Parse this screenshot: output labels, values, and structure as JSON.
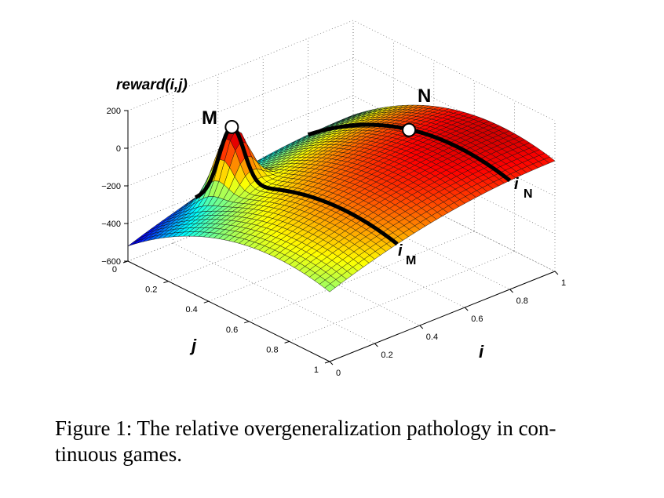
{
  "chart_data": {
    "type": "surface",
    "title": "",
    "zlabel": "reward(i,j)",
    "xlabel": "i",
    "ylabel": "j",
    "xlim": [
      0,
      1
    ],
    "ylim": [
      0,
      1
    ],
    "zlim": [
      -600,
      200
    ],
    "x_ticks": [
      "0",
      "0.2",
      "0.4",
      "0.6",
      "0.8",
      "1"
    ],
    "y_ticks": [
      "0",
      "0.2",
      "0.4",
      "0.6",
      "0.8",
      "1"
    ],
    "z_ticks": [
      "200",
      "0",
      "−200",
      "−400",
      "−600"
    ],
    "z_tick_values": [
      200,
      0,
      -200,
      -400,
      -600
    ],
    "x_tick_values": [
      0,
      0.2,
      0.4,
      0.6,
      0.8,
      1
    ],
    "y_tick_values": [
      0,
      0.2,
      0.4,
      0.6,
      0.8,
      1
    ],
    "surface_corners": {
      "i0_j0": -520,
      "i0_j1": -230,
      "i1_j0": -303,
      "i1_j1": -13
    },
    "narrow_peak": {
      "label": "M",
      "i": 0.3,
      "j": 0.18,
      "reward": 65
    },
    "broad_peak": {
      "label": "N",
      "i": 0.8,
      "j": 0.5,
      "reward": -20
    },
    "cross_sections": [
      {
        "label": "i",
        "subscript": "M",
        "i": 0.3
      },
      {
        "label": "i",
        "subscript": "N",
        "i": 0.8
      }
    ],
    "colormap": "jet"
  },
  "caption": {
    "line1": "Figure 1: The relative overgeneralization pathology in con-",
    "line2": "tinuous games."
  }
}
